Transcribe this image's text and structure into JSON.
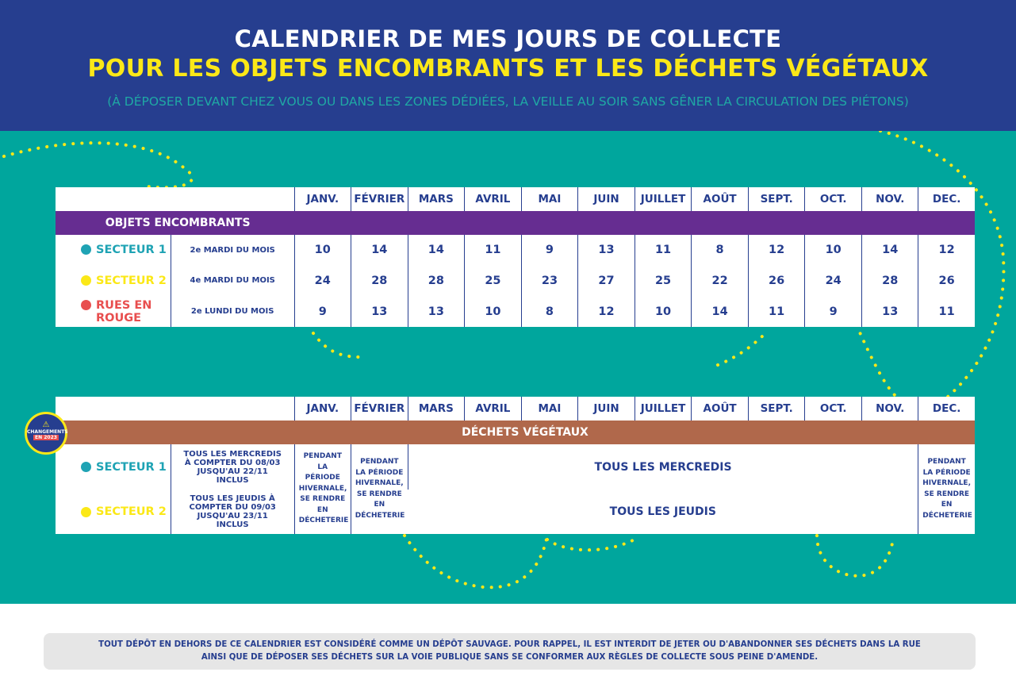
{
  "header": {
    "title": "CALENDRIER DE MES JOURS DE COLLECTE",
    "subtitle": "POUR LES OBJETS ENCOMBRANTS ET LES DÉCHETS VÉGÉTAUX",
    "note": "(À DÉPOSER DEVANT CHEZ VOUS OU DANS LES ZONES DÉDIÉES, LA VEILLE AU SOIR SANS GÊNER LA CIRCULATION DES PIÉTONS)"
  },
  "months": [
    "JANV.",
    "FÉVRIER",
    "MARS",
    "AVRIL",
    "MAI",
    "JUIN",
    "JUILLET",
    "AOÛT",
    "SEPT.",
    "OCT.",
    "NOV.",
    "DEC."
  ],
  "encombrants": {
    "title": "OBJETS ENCOMBRANTS",
    "rows": [
      {
        "label": "SECTEUR 1",
        "color": "#1fa3b4",
        "rule": "2e MARDI DU MOIS",
        "days": [
          "10",
          "14",
          "14",
          "11",
          "9",
          "13",
          "11",
          "8",
          "12",
          "10",
          "14",
          "12"
        ]
      },
      {
        "label": "SECTEUR 2",
        "color": "#fbe817",
        "rule": "4e MARDI DU MOIS",
        "days": [
          "24",
          "28",
          "28",
          "25",
          "23",
          "27",
          "25",
          "22",
          "26",
          "24",
          "28",
          "26"
        ]
      },
      {
        "label": "RUES EN ROUGE",
        "color": "#e84e4e",
        "rule": "2e LUNDI DU MOIS",
        "days": [
          "9",
          "13",
          "13",
          "10",
          "8",
          "12",
          "10",
          "14",
          "11",
          "9",
          "13",
          "11"
        ]
      }
    ]
  },
  "vegetaux": {
    "title": "DÉCHETS VÉGÉTAUX",
    "winter_note": "PENDANT LA PÉRIODE HIVERNALE, SE RENDRE EN DÉCHETERIE",
    "rows": [
      {
        "label": "SECTEUR 1",
        "color": "#1fa3b4",
        "rule": "TOUS LES MERCREDIS À COMPTER DU 08/03 JUSQU'AU 22/11 INCLUS",
        "schedule": "TOUS LES MERCREDIS"
      },
      {
        "label": "SECTEUR 2",
        "color": "#fbe817",
        "rule": "TOUS LES JEUDIS À COMPTER DU 09/03 JUSQU'AU 23/11 INCLUS",
        "schedule": "TOUS LES JEUDIS"
      }
    ]
  },
  "badge": {
    "line1": "CHANGEMENTS",
    "line2": "EN 2023"
  },
  "footer": {
    "line1": "TOUT DÉPÔT EN DEHORS DE CE CALENDRIER EST CONSIDÉRÉ COMME UN DÉPÔT SAUVAGE. POUR RAPPEL, IL EST INTERDIT DE JETER OU D'ABANDONNER SES DÉCHETS DANS LA RUE",
    "line2": "AINSI QUE DE DÉPOSER SES DÉCHETS SUR LA VOIE PUBLIQUE SANS SE CONFORMER AUX RÈGLES DE COLLECTE SOUS PEINE D'AMENDE."
  }
}
